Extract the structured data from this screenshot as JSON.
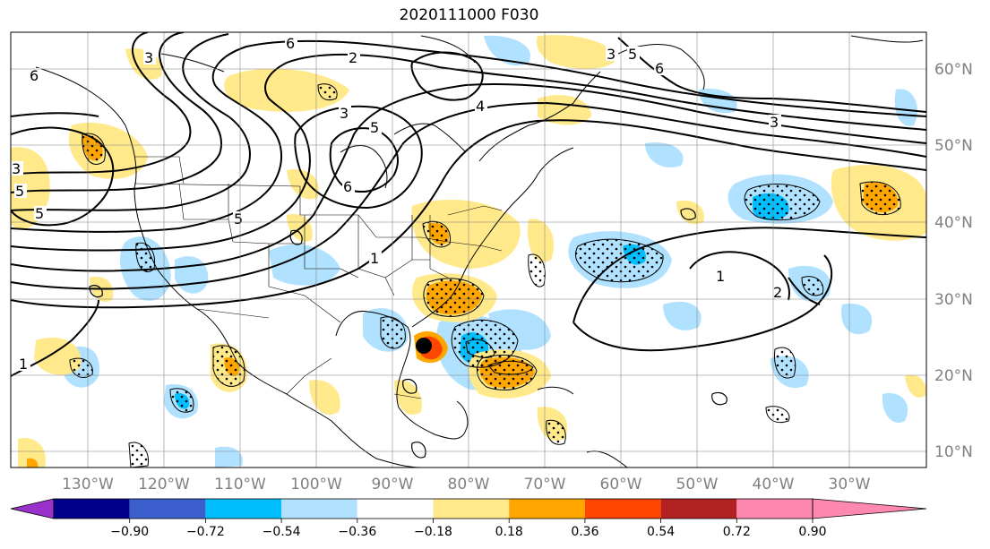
{
  "title": "2020111000 F030",
  "lon_labels": [
    "130°W",
    "120°W",
    "110°W",
    "100°W",
    "90°W",
    "80°W",
    "70°W",
    "60°W",
    "50°W",
    "40°W",
    "30°W"
  ],
  "lat_labels": [
    "60°N",
    "50°N",
    "40°N",
    "30°N",
    "20°N",
    "10°N"
  ],
  "colorbar": {
    "ticks": [
      "−0.90",
      "−0.72",
      "−0.54",
      "−0.36",
      "−0.18",
      "0.18",
      "0.36",
      "0.54",
      "0.72",
      "0.90"
    ],
    "colors": [
      "#9932cc",
      "#00008b",
      "#3a5fcd",
      "#00bfff",
      "#b0e2ff",
      "#ffffff",
      "#ffe98a",
      "#ffa500",
      "#ff4500",
      "#b22222",
      "#ff88b0"
    ]
  },
  "contour_labels": [
    "6",
    "2",
    "3",
    "5",
    "6",
    "3",
    "5",
    "6",
    "3",
    "5",
    "1",
    "1",
    "2",
    "4",
    "5",
    "3",
    "1",
    "6",
    "3",
    "5"
  ]
}
